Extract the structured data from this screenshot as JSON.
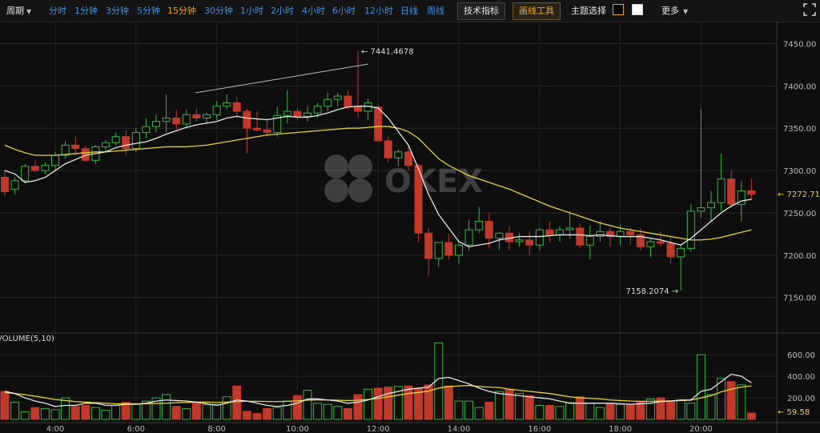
{
  "toolbar": {
    "period_label": "周期",
    "timeframes": [
      "分时",
      "1分钟",
      "3分钟",
      "5分钟",
      "15分钟",
      "30分钟",
      "1小时",
      "2小时",
      "4小时",
      "6小时",
      "12小时",
      "日线",
      "周线"
    ],
    "active_timeframe": "15分钟",
    "indicator_button": "技术指标",
    "draw_button": "画线工具",
    "theme_label": "主题选择",
    "more_label": "更多",
    "accent_color": "#f2a51a",
    "link_color": "#4a90d9"
  },
  "watermark": "OKEX",
  "volume_title": "VOLUME(5,10)",
  "chart_data": [
    {
      "type": "candlestick",
      "name": "price",
      "x_ticks": [
        "4:00",
        "6:00",
        "8:00",
        "10:00",
        "12:00",
        "14:00",
        "16:00",
        "18:00",
        "20:00"
      ],
      "y_ticks": [
        "7450.00",
        "7400.00",
        "7350.00",
        "7300.00",
        "7250.00",
        "7200.00",
        "7150.00"
      ],
      "ylim": [
        7110,
        7475
      ],
      "annotations": {
        "high_label": "7441.4678",
        "low_label": "7158.2074",
        "last_price_label": "7272.7191"
      },
      "colors": {
        "up": "#3bb44a",
        "down": "#c0392b",
        "ma_fast": "#e6e6e6",
        "ma_slow": "#e3d23a"
      },
      "candles": [
        [
          7292,
          7300,
          7270,
          7275
        ],
        [
          7278,
          7292,
          7272,
          7288
        ],
        [
          7288,
          7308,
          7285,
          7305
        ],
        [
          7305,
          7312,
          7298,
          7300
        ],
        [
          7300,
          7310,
          7296,
          7306
        ],
        [
          7306,
          7322,
          7300,
          7318
        ],
        [
          7318,
          7335,
          7314,
          7330
        ],
        [
          7330,
          7340,
          7318,
          7326
        ],
        [
          7326,
          7330,
          7310,
          7312
        ],
        [
          7312,
          7330,
          7308,
          7328
        ],
        [
          7328,
          7336,
          7322,
          7333
        ],
        [
          7333,
          7345,
          7330,
          7340
        ],
        [
          7340,
          7348,
          7318,
          7326
        ],
        [
          7326,
          7350,
          7322,
          7345
        ],
        [
          7345,
          7362,
          7338,
          7352
        ],
        [
          7352,
          7366,
          7345,
          7358
        ],
        [
          7358,
          7390,
          7345,
          7362
        ],
        [
          7362,
          7372,
          7348,
          7355
        ],
        [
          7355,
          7372,
          7350,
          7366
        ],
        [
          7366,
          7373,
          7358,
          7362
        ],
        [
          7362,
          7368,
          7355,
          7366
        ],
        [
          7366,
          7382,
          7360,
          7376
        ],
        [
          7376,
          7390,
          7372,
          7380
        ],
        [
          7380,
          7387,
          7364,
          7370
        ],
        [
          7370,
          7373,
          7320,
          7350
        ],
        [
          7350,
          7370,
          7346,
          7348
        ],
        [
          7348,
          7362,
          7340,
          7345
        ],
        [
          7345,
          7375,
          7340,
          7365
        ],
        [
          7365,
          7395,
          7356,
          7370
        ],
        [
          7370,
          7374,
          7360,
          7364
        ],
        [
          7364,
          7376,
          7358,
          7368
        ],
        [
          7368,
          7380,
          7362,
          7376
        ],
        [
          7376,
          7392,
          7370,
          7384
        ],
        [
          7384,
          7392,
          7376,
          7388
        ],
        [
          7388,
          7395,
          7372,
          7375
        ],
        [
          7375,
          7441.4678,
          7362,
          7370
        ],
        [
          7370,
          7385,
          7360,
          7380
        ],
        [
          7375,
          7378,
          7338,
          7335
        ],
        [
          7335,
          7340,
          7310,
          7315
        ],
        [
          7315,
          7325,
          7305,
          7322
        ],
        [
          7322,
          7330,
          7300,
          7306
        ],
        [
          7306,
          7308,
          7215,
          7226
        ],
        [
          7226,
          7232,
          7176,
          7196
        ],
        [
          7196,
          7212,
          7186,
          7215
        ],
        [
          7215,
          7225,
          7195,
          7200
        ],
        [
          7200,
          7218,
          7190,
          7212
        ],
        [
          7212,
          7242,
          7205,
          7230
        ],
        [
          7230,
          7257,
          7226,
          7240
        ],
        [
          7240,
          7250,
          7208,
          7220
        ],
        [
          7220,
          7227,
          7206,
          7226
        ],
        [
          7226,
          7234,
          7206,
          7216
        ],
        [
          7216,
          7226,
          7210,
          7218
        ],
        [
          7218,
          7228,
          7200,
          7212
        ],
        [
          7212,
          7232,
          7206,
          7230
        ],
        [
          7230,
          7240,
          7215,
          7224
        ],
        [
          7224,
          7234,
          7216,
          7230
        ],
        [
          7230,
          7252,
          7220,
          7232
        ],
        [
          7232,
          7237,
          7208,
          7212
        ],
        [
          7212,
          7235,
          7195,
          7222
        ],
        [
          7222,
          7240,
          7216,
          7228
        ],
        [
          7228,
          7232,
          7210,
          7222
        ],
        [
          7222,
          7236,
          7212,
          7228
        ],
        [
          7228,
          7232,
          7212,
          7224
        ],
        [
          7224,
          7232,
          7205,
          7210
        ],
        [
          7210,
          7220,
          7198,
          7216
        ],
        [
          7216,
          7228,
          7210,
          7214
        ],
        [
          7214,
          7222,
          7190,
          7198
        ],
        [
          7198,
          7212,
          7158.2074,
          7208
        ],
        [
          7208,
          7260,
          7204,
          7252
        ],
        [
          7252,
          7373,
          7244,
          7256
        ],
        [
          7256,
          7276,
          7240,
          7262
        ],
        [
          7262,
          7320,
          7252,
          7290
        ],
        [
          7290,
          7300,
          7256,
          7260
        ],
        [
          7260,
          7288,
          7240,
          7276
        ],
        [
          7276,
          7290,
          7265,
          7272
        ]
      ],
      "ma_fast": [
        7300,
        7296,
        7286,
        7288,
        7292,
        7300,
        7308,
        7313,
        7318,
        7320,
        7322,
        7327,
        7330,
        7332,
        7334,
        7338,
        7343,
        7347,
        7351,
        7354,
        7356,
        7358,
        7362,
        7364,
        7362,
        7361,
        7360,
        7362,
        7364,
        7363,
        7363,
        7365,
        7368,
        7372,
        7375,
        7376,
        7376,
        7374,
        7362,
        7346,
        7330,
        7302,
        7272,
        7248,
        7232,
        7216,
        7210,
        7212,
        7214,
        7218,
        7220,
        7222,
        7222,
        7222,
        7223,
        7224,
        7224,
        7224,
        7223,
        7224,
        7223,
        7222,
        7222,
        7222,
        7220,
        7218,
        7215,
        7212,
        7220,
        7230,
        7240,
        7250,
        7258,
        7264,
        7266
      ],
      "ma_slow": [
        7330,
        7325,
        7321,
        7318,
        7318,
        7318,
        7319,
        7320,
        7321,
        7322,
        7322,
        7323,
        7324,
        7325,
        7326,
        7327,
        7328,
        7328,
        7328,
        7329,
        7330,
        7332,
        7334,
        7336,
        7338,
        7340,
        7342,
        7343,
        7344,
        7345,
        7346,
        7347,
        7348,
        7349,
        7350,
        7350,
        7351,
        7352,
        7352,
        7350,
        7346,
        7338,
        7326,
        7314,
        7306,
        7300,
        7294,
        7290,
        7286,
        7282,
        7278,
        7273,
        7268,
        7263,
        7258,
        7254,
        7250,
        7246,
        7242,
        7238,
        7235,
        7232,
        7230,
        7228,
        7226,
        7224,
        7222,
        7220,
        7218,
        7218,
        7219,
        7221,
        7224,
        7227,
        7230
      ]
    },
    {
      "type": "bar",
      "name": "volume",
      "y_ticks": [
        "600.00",
        "400.00",
        "200.00"
      ],
      "ylim": [
        0,
        750
      ],
      "last_value_label": "59.58",
      "values": [
        260,
        160,
        70,
        110,
        100,
        90,
        200,
        120,
        130,
        110,
        85,
        130,
        160,
        140,
        170,
        200,
        230,
        120,
        100,
        150,
        135,
        140,
        210,
        310,
        75,
        55,
        100,
        110,
        170,
        220,
        270,
        150,
        140,
        120,
        100,
        230,
        280,
        290,
        300,
        305,
        310,
        290,
        320,
        710,
        310,
        170,
        170,
        110,
        160,
        260,
        280,
        240,
        220,
        130,
        130,
        120,
        155,
        210,
        150,
        110,
        150,
        140,
        140,
        160,
        190,
        200,
        170,
        180,
        150,
        600,
        230,
        380,
        350,
        320,
        59.58
      ],
      "ma5": [
        260,
        240,
        200,
        170,
        150,
        120,
        130,
        130,
        150,
        150,
        130,
        130,
        140,
        140,
        150,
        170,
        180,
        175,
        170,
        160,
        145,
        130,
        150,
        180,
        170,
        150,
        130,
        120,
        130,
        150,
        190,
        190,
        180,
        170,
        150,
        160,
        180,
        210,
        240,
        260,
        280,
        290,
        300,
        380,
        390,
        360,
        330,
        290,
        260,
        240,
        230,
        220,
        210,
        200,
        190,
        170,
        150,
        150,
        150,
        150,
        150,
        145,
        140,
        145,
        150,
        165,
        170,
        180,
        180,
        260,
        280,
        350,
        420,
        400,
        340
      ],
      "ma10": [
        250,
        240,
        230,
        215,
        200,
        185,
        175,
        165,
        160,
        155,
        150,
        145,
        145,
        145,
        145,
        148,
        150,
        155,
        157,
        160,
        160,
        158,
        160,
        165,
        168,
        168,
        166,
        165,
        168,
        172,
        178,
        180,
        180,
        178,
        175,
        178,
        185,
        195,
        210,
        225,
        240,
        250,
        262,
        290,
        305,
        310,
        315,
        305,
        300,
        295,
        280,
        270,
        260,
        250,
        240,
        225,
        210,
        200,
        195,
        190,
        180,
        175,
        170,
        168,
        168,
        170,
        172,
        175,
        178,
        200,
        220,
        255,
        280,
        300,
        310
      ]
    }
  ]
}
